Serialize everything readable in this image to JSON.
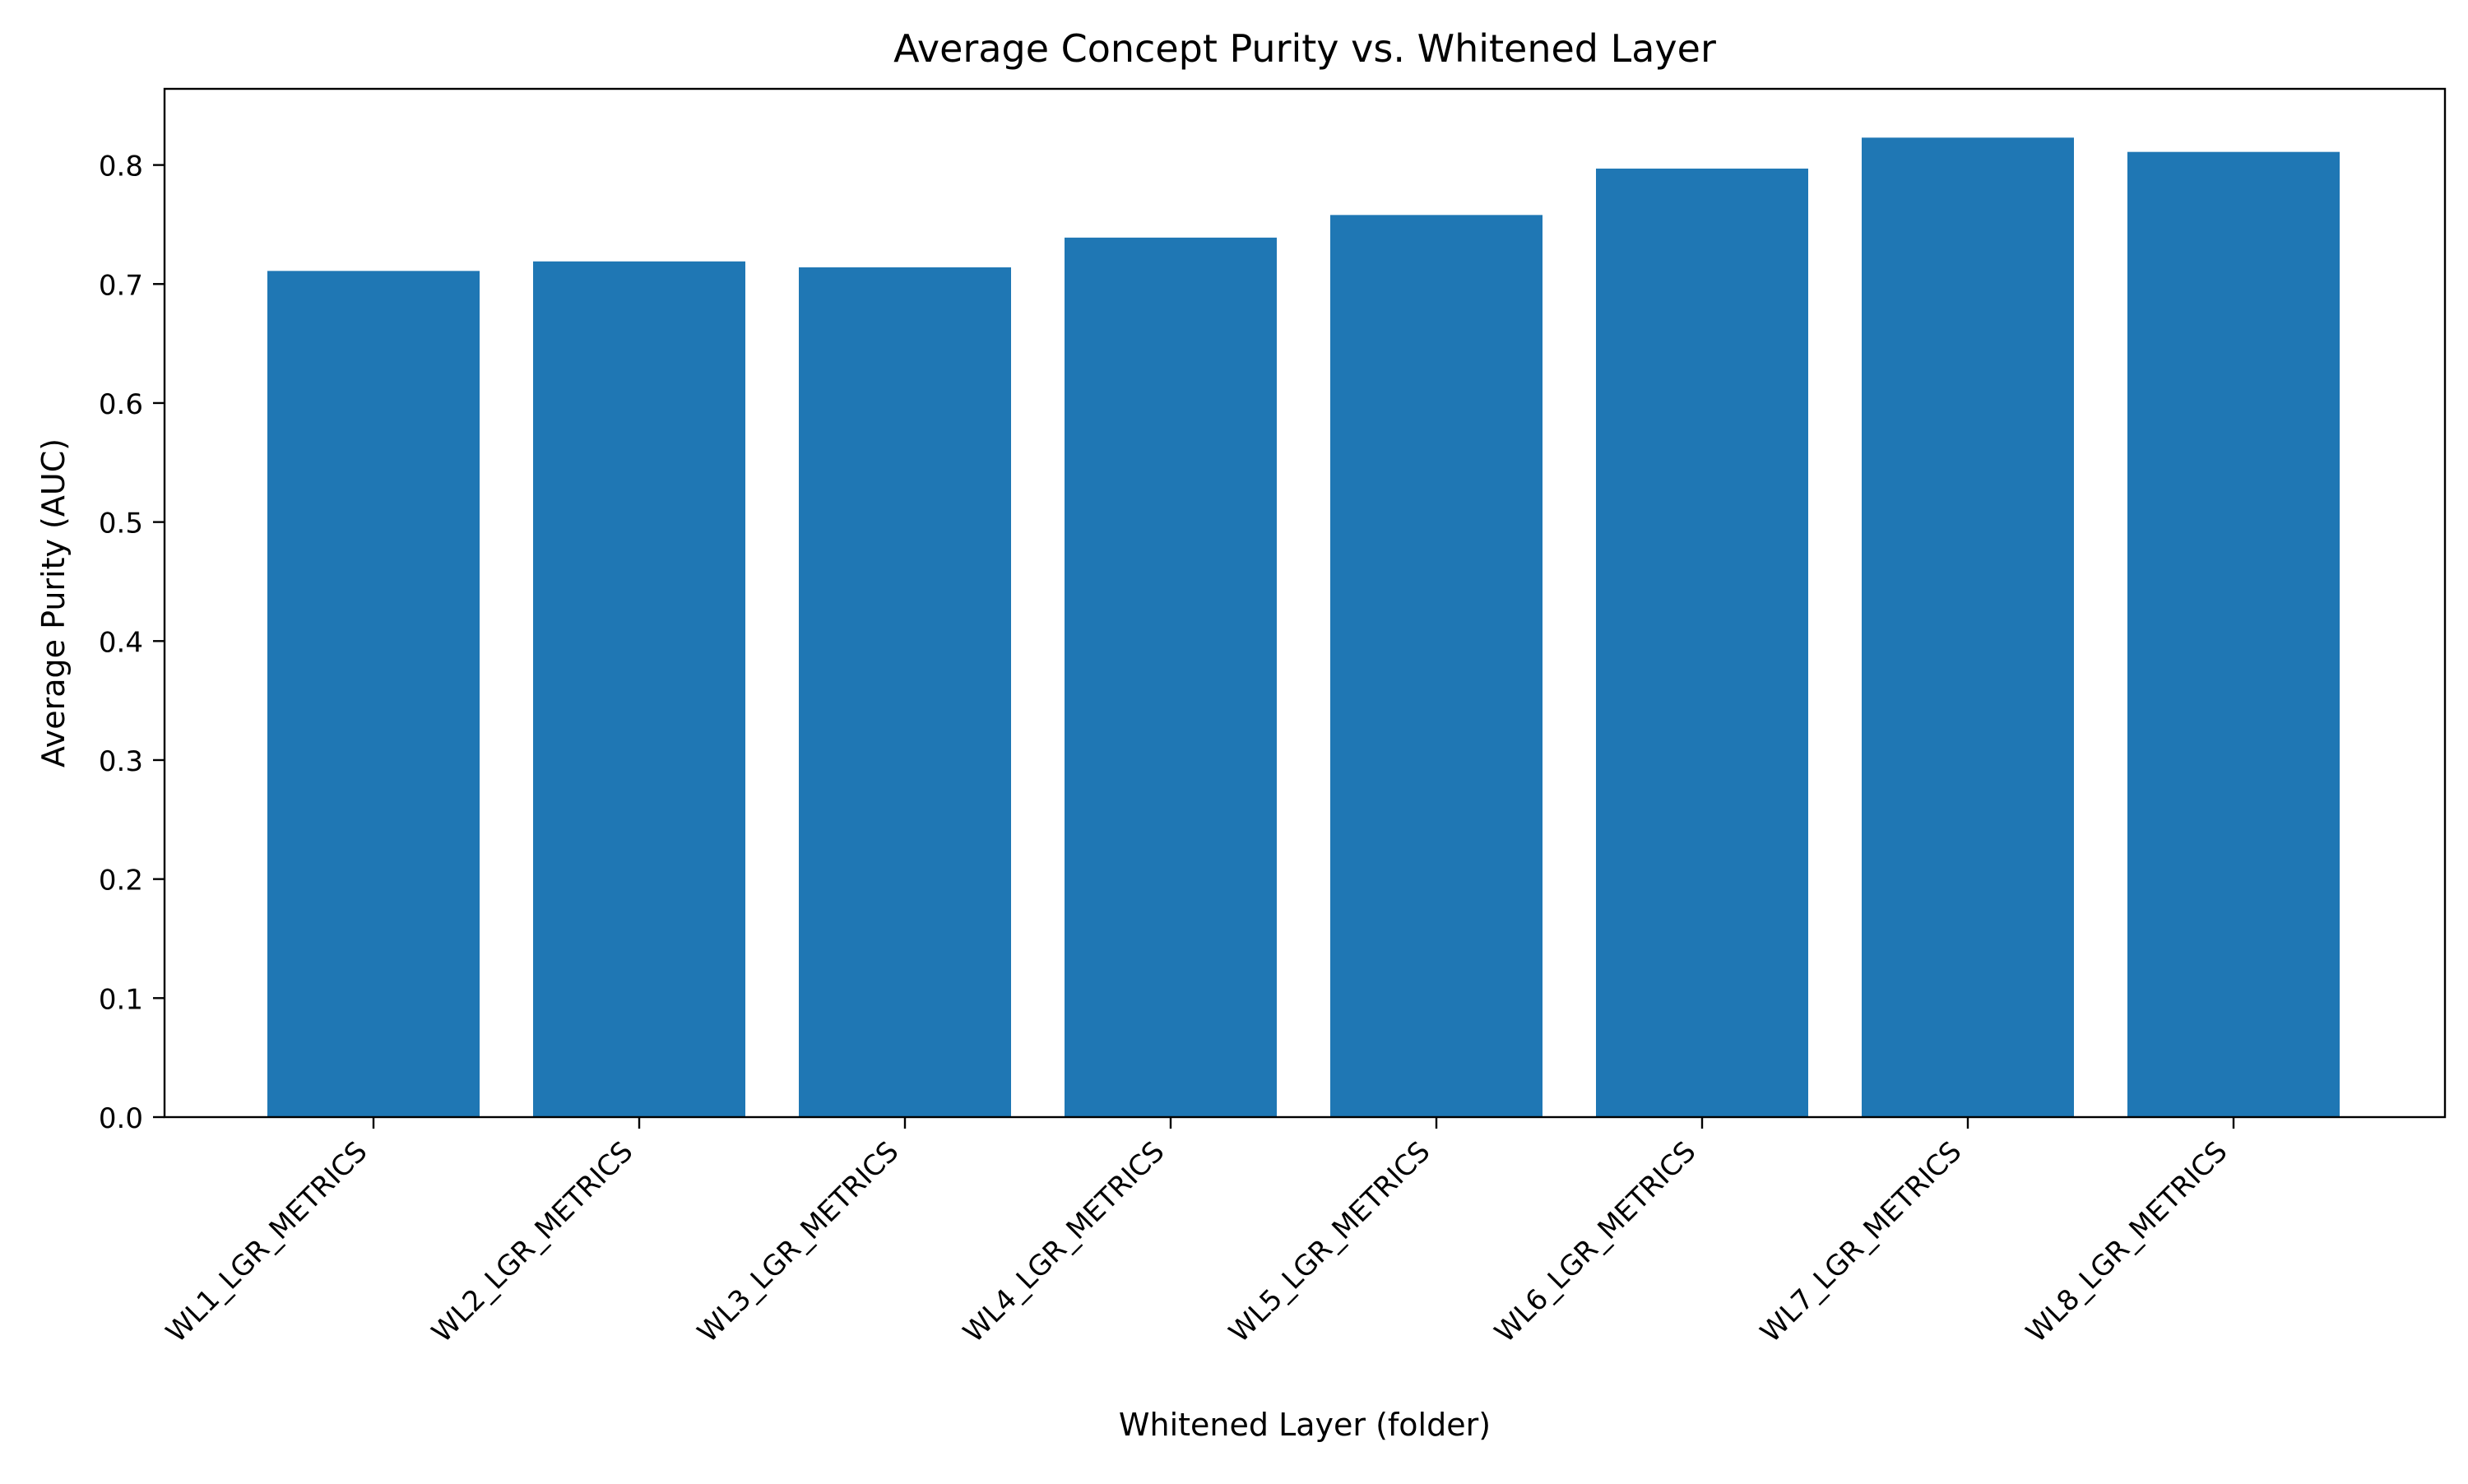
{
  "chart_data": {
    "type": "bar",
    "title": "Average Concept Purity vs. Whitened Layer",
    "xlabel": "Whitened Layer (folder)",
    "ylabel": "Average Purity (AUC)",
    "categories": [
      "WL1_LGR_METRICS",
      "WL2_LGR_METRICS",
      "WL3_LGR_METRICS",
      "WL4_LGR_METRICS",
      "WL5_LGR_METRICS",
      "WL6_LGR_METRICS",
      "WL7_LGR_METRICS",
      "WL8_LGR_METRICS"
    ],
    "values": [
      0.711,
      0.719,
      0.714,
      0.739,
      0.758,
      0.797,
      0.823,
      0.811
    ],
    "ylim": [
      0,
      0.864
    ],
    "yticks": [
      "0.0",
      "0.1",
      "0.2",
      "0.3",
      "0.4",
      "0.5",
      "0.6",
      "0.7",
      "0.8"
    ],
    "grid": false,
    "legend": "none",
    "bar_color": "#1f77b4"
  }
}
